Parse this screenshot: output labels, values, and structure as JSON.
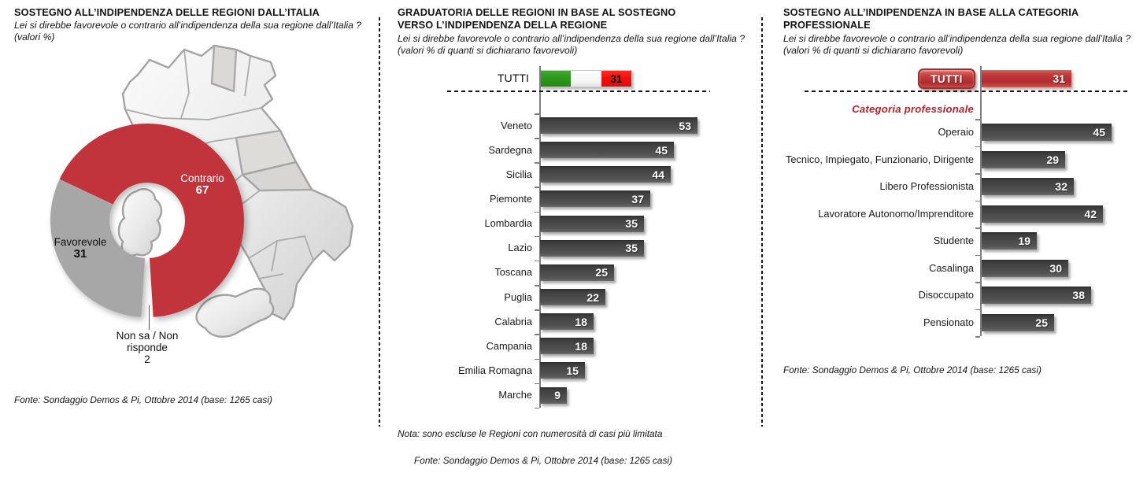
{
  "colors": {
    "donut_red": "#c1343c",
    "donut_gray": "#a7a7a7",
    "bar_dark": "#474747",
    "accent_red": "#b02c2f",
    "flag_green": "#2f9a1f",
    "flag_red": "#f30f0e",
    "group_label_red": "#b3232a"
  },
  "panels": {
    "left": {
      "title": "SOSTEGNO ALL’INDIPENDENZA DELLE REGIONI DALL’ITALIA",
      "question": "Lei si direbbe favorevole o contrario all’indipendenza della sua regione dall’Italia ?",
      "values_note": "(valori %)",
      "fonte": "Fonte: Sondaggio Demos & Pi, Ottobre 2014 (base: 1265 casi)",
      "donut": {
        "contrario_label": "Contrario",
        "contrario_value": "67",
        "favorevole_label": "Favorevole",
        "favorevole_value": "31",
        "nonsa_label": "Non sa / Non risponde",
        "nonsa_value": "2"
      }
    },
    "middle": {
      "title": "GRADUATORIA DELLE REGIONI IN BASE AL SOSTEGNO VERSO L’INDIPENDENZA  DELLA REGIONE",
      "question": "Lei si direbbe favorevole o contrario all’indipendenza della sua regione dall’Italia ?",
      "values_note": "(valori % di quanti si dichiarano favorevoli)",
      "tutti_label": "TUTTI",
      "tutti_value": "31",
      "nota": "Nota: sono escluse le Regioni con numerosità di casi più  limitata",
      "fonte": "Fonte: Sondaggio Demos & Pi, Ottobre 2014 (base: 1265 casi)"
    },
    "right": {
      "title": "SOSTEGNO ALL’INDIPENDENZA IN BASE ALLA  CATEGORIA PROFESSIONALE",
      "question": "Lei si direbbe favorevole o contrario all’indipendenza della sua regione dall’Italia ?",
      "values_note": "(valori % di quanti si dichiarano favorevoli)",
      "tutti_label": "TUTTI",
      "tutti_value": "31",
      "group_label": "Categoria  professionale",
      "fonte": "Fonte: Sondaggio Demos & Pi, Ottobre 2014 (base: 1265 casi)"
    }
  },
  "chart_data": [
    {
      "type": "pie",
      "donut": true,
      "title": "Sostegno all’indipendenza delle regioni dall’Italia (valori %)",
      "labels": [
        "Contrario",
        "Favorevole",
        "Non sa / Non risponde"
      ],
      "values": [
        67,
        31,
        2
      ],
      "colors": [
        "#c1343c",
        "#a7a7a7",
        "#ffffff"
      ]
    },
    {
      "type": "bar",
      "orientation": "horizontal",
      "title": "Graduatoria delle regioni in base al sostegno verso l’indipendenza della regione (valori % di favorevoli)",
      "reference": {
        "label": "TUTTI",
        "value": 31,
        "style": "italian-flag"
      },
      "categories": [
        "Veneto",
        "Sardegna",
        "Sicilia",
        "Piemonte",
        "Lombardia",
        "Lazio",
        "Toscana",
        "Puglia",
        "Calabria",
        "Campania",
        "Emilia Romagna",
        "Marche"
      ],
      "values": [
        53,
        45,
        44,
        37,
        35,
        35,
        25,
        22,
        18,
        18,
        15,
        9
      ],
      "xlim": [
        0,
        60
      ],
      "grid": false,
      "bar_color": "#474747"
    },
    {
      "type": "bar",
      "orientation": "horizontal",
      "title": "Sostegno all’indipendenza in base alla categoria professionale (valori % di favorevoli)",
      "group_label": "Categoria  professionale",
      "reference": {
        "label": "TUTTI",
        "value": 31,
        "style": "red-button"
      },
      "categories": [
        "Operaio",
        "Tecnico, Impiegato, Funzionario, Dirigente",
        "Libero Professionista",
        "Lavoratore Autonomo/Imprenditore",
        "Studente",
        "Casalinga",
        "Disoccupato",
        "Pensionato"
      ],
      "values": [
        45,
        29,
        32,
        42,
        19,
        30,
        38,
        25
      ],
      "xlim": [
        0,
        50
      ],
      "grid": false,
      "bar_color": "#474747"
    }
  ]
}
